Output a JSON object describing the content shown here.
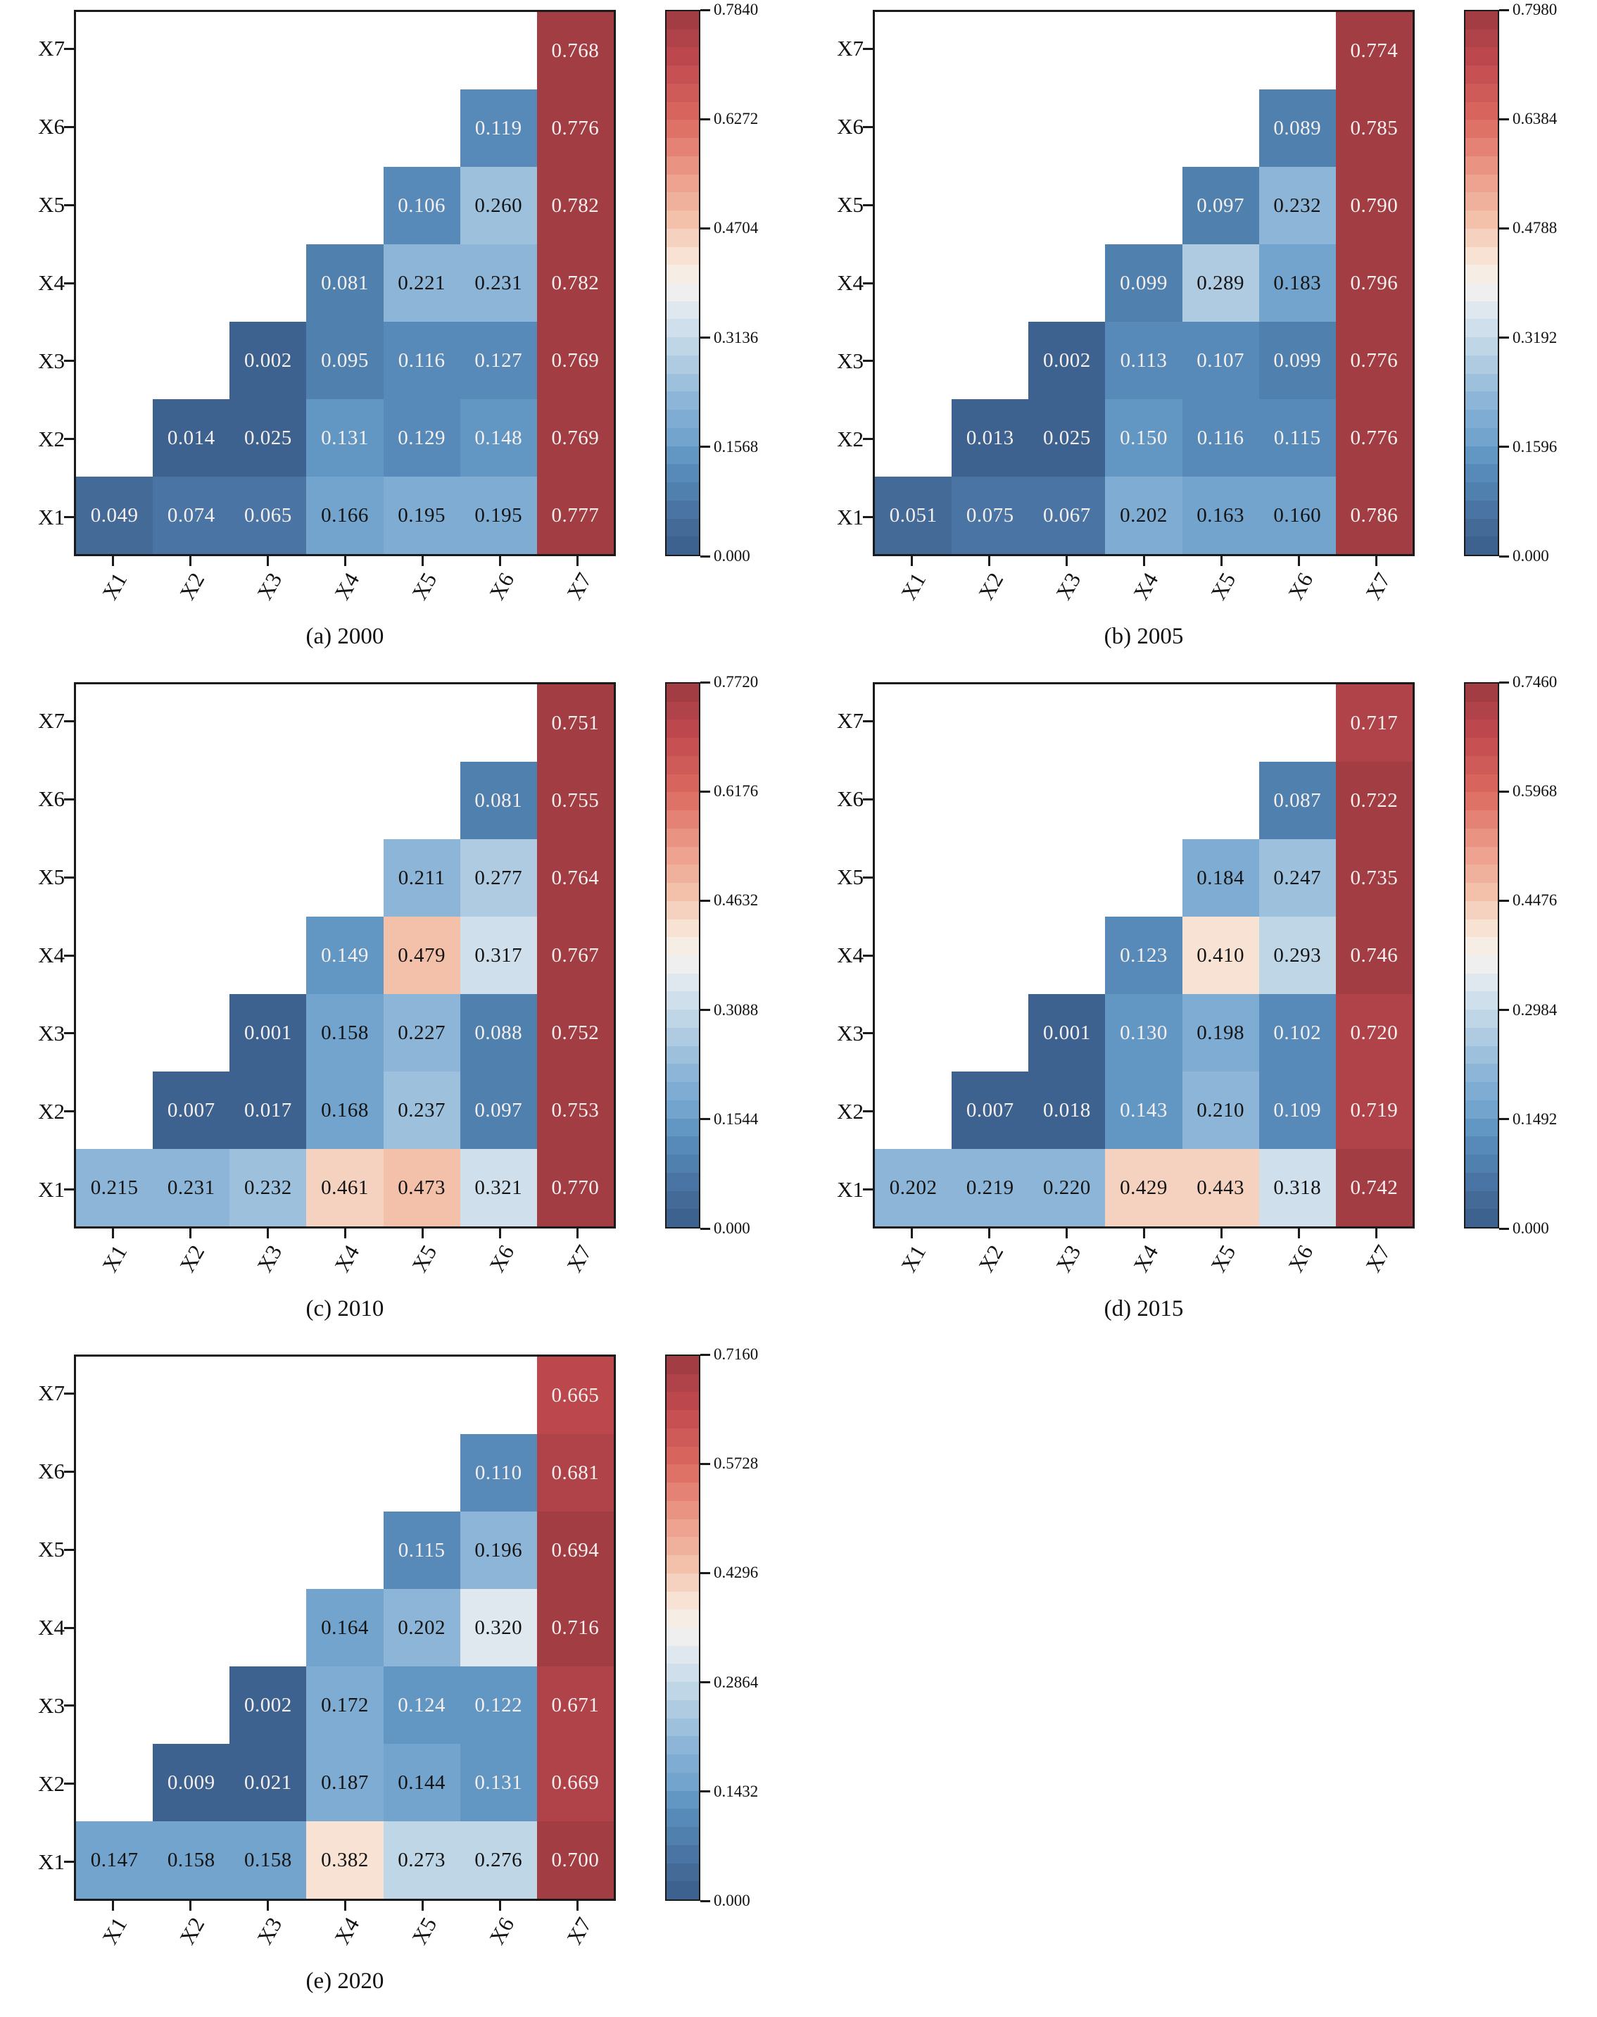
{
  "style": {
    "background": "#ffffff",
    "axis_color": "#1a1a1a",
    "annotation_text_dark": "#141414",
    "annotation_text_light": "#f5efee",
    "colorbar_bands": 30,
    "luminance_dark_text_threshold": 0.3,
    "colormap_stops": [
      [
        0.0,
        "#3B5E8B"
      ],
      [
        0.06,
        "#466C9B"
      ],
      [
        0.12,
        "#5081AF"
      ],
      [
        0.17,
        "#5C90BF"
      ],
      [
        0.22,
        "#74A5CE"
      ],
      [
        0.27,
        "#86B1D5"
      ],
      [
        0.33,
        "#A3C5DF"
      ],
      [
        0.4,
        "#C8DBE9"
      ],
      [
        0.46,
        "#E2EBEF"
      ],
      [
        0.5,
        "#F6F2EE"
      ],
      [
        0.56,
        "#F7DFCE"
      ],
      [
        0.62,
        "#F3BEA7"
      ],
      [
        0.7,
        "#EC9C89"
      ],
      [
        0.8,
        "#DC6A60"
      ],
      [
        0.9,
        "#C24B4F"
      ],
      [
        1.0,
        "#9C3A42"
      ]
    ]
  },
  "chart_data": [
    {
      "type": "heatmap",
      "panel_id": "a",
      "caption": "(a) 2000",
      "x_labels": [
        "X1",
        "X2",
        "X3",
        "X4",
        "X5",
        "X6",
        "X7"
      ],
      "y_labels_top_to_bottom": [
        "X7",
        "X6",
        "X5",
        "X4",
        "X3",
        "X2",
        "X1"
      ],
      "vmin": 0.0,
      "vmax": 0.784,
      "colorbar_tick_labels": [
        "0.7840",
        "0.6272",
        "0.4704",
        "0.3136",
        "0.1568",
        "0.000"
      ],
      "values": [
        [
          null,
          null,
          null,
          null,
          null,
          null,
          0.768
        ],
        [
          null,
          null,
          null,
          null,
          null,
          0.119,
          0.776
        ],
        [
          null,
          null,
          null,
          null,
          0.106,
          0.26,
          0.782
        ],
        [
          null,
          null,
          null,
          0.081,
          0.221,
          0.231,
          0.782
        ],
        [
          null,
          null,
          0.002,
          0.095,
          0.116,
          0.127,
          0.769
        ],
        [
          null,
          0.014,
          0.025,
          0.131,
          0.129,
          0.148,
          0.769
        ],
        [
          0.049,
          0.074,
          0.065,
          0.166,
          0.195,
          0.195,
          0.777
        ]
      ]
    },
    {
      "type": "heatmap",
      "panel_id": "b",
      "caption": "(b) 2005",
      "x_labels": [
        "X1",
        "X2",
        "X3",
        "X4",
        "X5",
        "X6",
        "X7"
      ],
      "y_labels_top_to_bottom": [
        "X7",
        "X6",
        "X5",
        "X4",
        "X3",
        "X2",
        "X1"
      ],
      "vmin": 0.0,
      "vmax": 0.798,
      "colorbar_tick_labels": [
        "0.7980",
        "0.6384",
        "0.4788",
        "0.3192",
        "0.1596",
        "0.000"
      ],
      "values": [
        [
          null,
          null,
          null,
          null,
          null,
          null,
          0.774
        ],
        [
          null,
          null,
          null,
          null,
          null,
          0.089,
          0.785
        ],
        [
          null,
          null,
          null,
          null,
          0.097,
          0.232,
          0.79
        ],
        [
          null,
          null,
          null,
          0.099,
          0.289,
          0.183,
          0.796
        ],
        [
          null,
          null,
          0.002,
          0.113,
          0.107,
          0.099,
          0.776
        ],
        [
          null,
          0.013,
          0.025,
          0.15,
          0.116,
          0.115,
          0.776
        ],
        [
          0.051,
          0.075,
          0.067,
          0.202,
          0.163,
          0.16,
          0.786
        ]
      ]
    },
    {
      "type": "heatmap",
      "panel_id": "c",
      "caption": "(c) 2010",
      "x_labels": [
        "X1",
        "X2",
        "X3",
        "X4",
        "X5",
        "X6",
        "X7"
      ],
      "y_labels_top_to_bottom": [
        "X7",
        "X6",
        "X5",
        "X4",
        "X3",
        "X2",
        "X1"
      ],
      "vmin": 0.0,
      "vmax": 0.772,
      "colorbar_tick_labels": [
        "0.7720",
        "0.6176",
        "0.4632",
        "0.3088",
        "0.1544",
        "0.000"
      ],
      "values": [
        [
          null,
          null,
          null,
          null,
          null,
          null,
          0.751
        ],
        [
          null,
          null,
          null,
          null,
          null,
          0.081,
          0.755
        ],
        [
          null,
          null,
          null,
          null,
          0.211,
          0.277,
          0.764
        ],
        [
          null,
          null,
          null,
          0.149,
          0.479,
          0.317,
          0.767
        ],
        [
          null,
          null,
          0.001,
          0.158,
          0.227,
          0.088,
          0.752
        ],
        [
          null,
          0.007,
          0.017,
          0.168,
          0.237,
          0.097,
          0.753
        ],
        [
          0.215,
          0.231,
          0.232,
          0.461,
          0.473,
          0.321,
          0.77
        ]
      ]
    },
    {
      "type": "heatmap",
      "panel_id": "d",
      "caption": "(d) 2015",
      "x_labels": [
        "X1",
        "X2",
        "X3",
        "X4",
        "X5",
        "X6",
        "X7"
      ],
      "y_labels_top_to_bottom": [
        "X7",
        "X6",
        "X5",
        "X4",
        "X3",
        "X2",
        "X1"
      ],
      "vmin": 0.0,
      "vmax": 0.746,
      "colorbar_tick_labels": [
        "0.7460",
        "0.5968",
        "0.4476",
        "0.2984",
        "0.1492",
        "0.000"
      ],
      "values": [
        [
          null,
          null,
          null,
          null,
          null,
          null,
          0.717
        ],
        [
          null,
          null,
          null,
          null,
          null,
          0.087,
          0.722
        ],
        [
          null,
          null,
          null,
          null,
          0.184,
          0.247,
          0.735
        ],
        [
          null,
          null,
          null,
          0.123,
          0.41,
          0.293,
          0.746
        ],
        [
          null,
          null,
          0.001,
          0.13,
          0.198,
          0.102,
          0.72
        ],
        [
          null,
          0.007,
          0.018,
          0.143,
          0.21,
          0.109,
          0.719
        ],
        [
          0.202,
          0.219,
          0.22,
          0.429,
          0.443,
          0.318,
          0.742
        ]
      ]
    },
    {
      "type": "heatmap",
      "panel_id": "e",
      "caption": "(e) 2020",
      "x_labels": [
        "X1",
        "X2",
        "X3",
        "X4",
        "X5",
        "X6",
        "X7"
      ],
      "y_labels_top_to_bottom": [
        "X7",
        "X6",
        "X5",
        "X4",
        "X3",
        "X2",
        "X1"
      ],
      "vmin": 0.0,
      "vmax": 0.716,
      "colorbar_tick_labels": [
        "0.7160",
        "0.5728",
        "0.4296",
        "0.2864",
        "0.1432",
        "0.000"
      ],
      "values": [
        [
          null,
          null,
          null,
          null,
          null,
          null,
          0.665
        ],
        [
          null,
          null,
          null,
          null,
          null,
          0.11,
          0.681
        ],
        [
          null,
          null,
          null,
          null,
          0.115,
          0.196,
          0.694
        ],
        [
          null,
          null,
          null,
          0.164,
          0.202,
          0.32,
          0.716
        ],
        [
          null,
          null,
          0.002,
          0.172,
          0.124,
          0.122,
          0.671
        ],
        [
          null,
          0.009,
          0.021,
          0.187,
          0.144,
          0.131,
          0.669
        ],
        [
          0.147,
          0.158,
          0.158,
          0.382,
          0.273,
          0.276,
          0.7
        ]
      ]
    }
  ]
}
